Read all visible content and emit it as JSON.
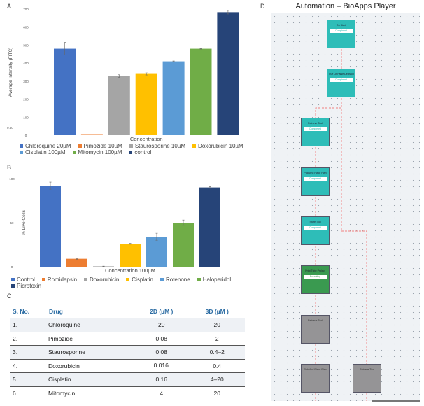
{
  "panels": {
    "a": "A",
    "b": "B",
    "c": "C",
    "d": "D"
  },
  "chart_data": [
    {
      "type": "bar",
      "title": "",
      "xlabel": "Concentration",
      "ylabel": "Average Intensity (FITC)",
      "ylim": [
        0,
        700
      ],
      "yticks": [
        "0",
        "100",
        "200",
        "300",
        "400",
        "500",
        "600",
        "700"
      ],
      "stray_label": "0.50",
      "categories": [
        "Chloroquine 20µM",
        "Pimozide  10µM",
        "Staurosporine  10µM",
        "Doxorubicin 10µM",
        "Cisplatin  100µM",
        "Mitomycin  100µM",
        "control"
      ],
      "values": [
        480,
        2,
        328,
        340,
        410,
        480,
        683
      ],
      "errors": [
        35,
        0,
        7,
        6,
        2,
        2,
        10
      ],
      "colors": [
        "#4472C4",
        "#ED7D31",
        "#A5A5A5",
        "#FFC000",
        "#5B9BD5",
        "#70AD47",
        "#264478"
      ],
      "legend": "bottom"
    },
    {
      "type": "bar",
      "title": "",
      "xlabel": "Concentration 100µM",
      "ylabel": "% Live Cells",
      "ylim": [
        0,
        100
      ],
      "yticks": [
        "0",
        "50",
        "100"
      ],
      "categories": [
        "Control",
        "Romidepsin",
        "Doxorubicin",
        "Cisplatin",
        "Rotenone",
        "Haloperidol",
        "Picrotoxin"
      ],
      "values": [
        92,
        9,
        0.5,
        26,
        34,
        50,
        90
      ],
      "errors": [
        4,
        0.5,
        0.2,
        0.5,
        4,
        3,
        1
      ],
      "colors": [
        "#4472C4",
        "#ED7D31",
        "#A5A5A5",
        "#FFC000",
        "#5B9BD5",
        "#70AD47",
        "#264478"
      ],
      "legend": "bottom"
    }
  ],
  "table": {
    "headers": [
      "S. No.",
      "Drug",
      "2D (µM )",
      "3D (µM )"
    ],
    "rows": [
      [
        "1.",
        "Chloroquine",
        "20",
        "20"
      ],
      [
        "2.",
        "Pimozide",
        "0.08",
        "2"
      ],
      [
        "3.",
        "Staurosporine",
        "0.08",
        "0.4–2"
      ],
      [
        "4.",
        "Doxorubicin",
        "0.016",
        "0.4"
      ],
      [
        "5.",
        "Cisplatin",
        "0.16",
        "4–20"
      ],
      [
        "6.",
        "Mitomycin",
        "4",
        "20"
      ]
    ]
  },
  "workflow": {
    "title": "Automation – BioApps Player",
    "nodes": [
      {
        "label": "On Start",
        "status": "Completed"
      },
      {
        "label": "True Or False Decision",
        "status": "Completed"
      },
      {
        "label": "Retrieve Tool",
        "status": "Completed"
      },
      {
        "label": "Pick And Place Plan",
        "status": "Completed"
      },
      {
        "label": "Store Tool",
        "status": "Completed"
      },
      {
        "label": "Print Tube Project",
        "status": "Executing"
      },
      {
        "label": "Retrieve Tool",
        "status": ""
      },
      {
        "label": "Pick And Place Plan",
        "status": ""
      },
      {
        "label": "Retrieve Tool",
        "status": ""
      }
    ],
    "colors": {
      "completed": "#2ebdb8",
      "executing": "#3a9a50",
      "pending": "#959496",
      "connector": "#f08080"
    }
  }
}
